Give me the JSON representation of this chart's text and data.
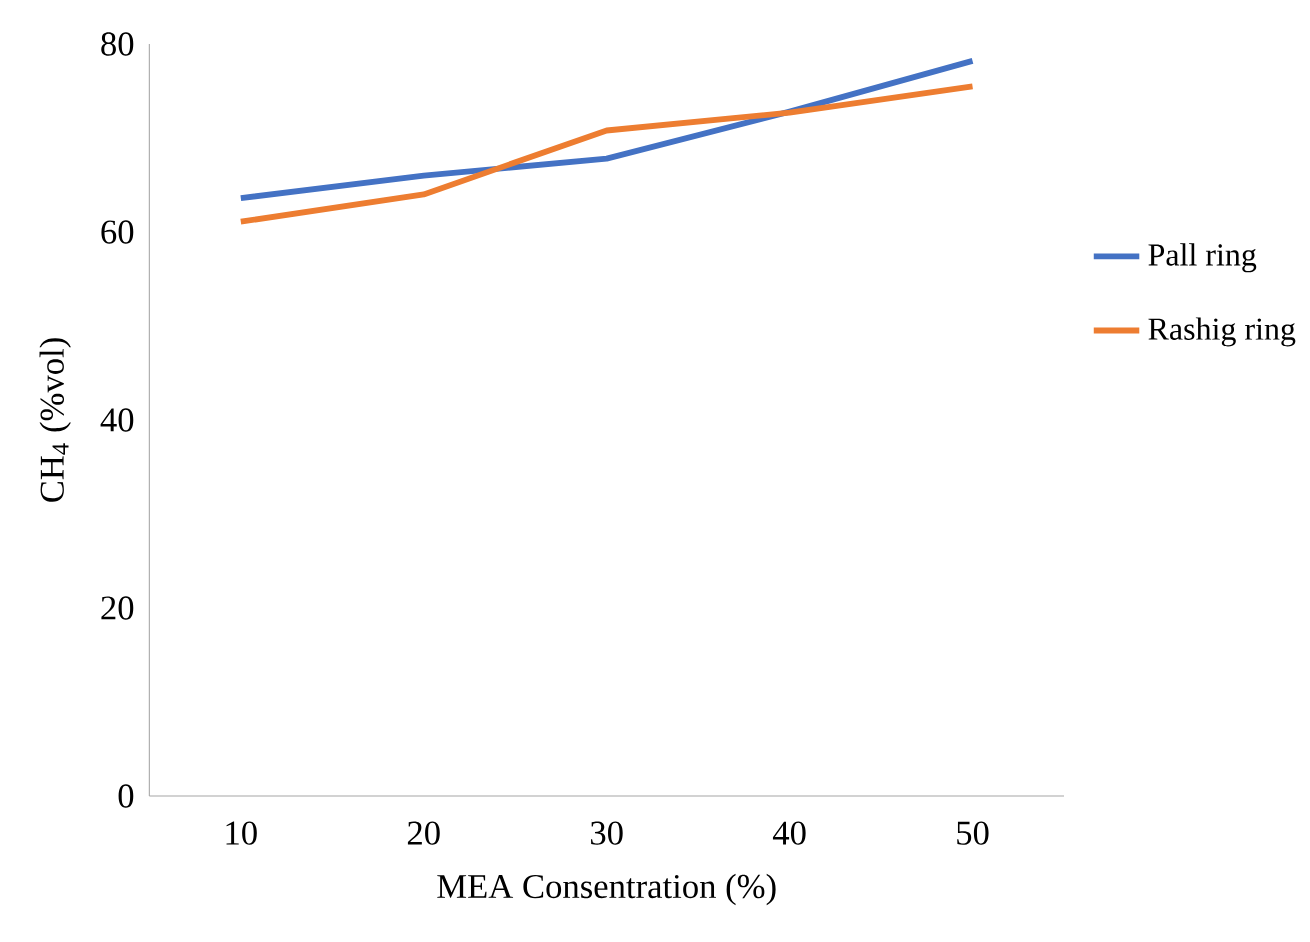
{
  "chart_data": {
    "type": "line",
    "xlabel": "MEA Consentration (%)",
    "ylabel": "CH$_{4}$ (%vol)",
    "categories": [
      "10",
      "20",
      "30",
      "40",
      "50"
    ],
    "series": [
      {
        "name": "Pall ring",
        "color": "#4472c4",
        "values": [
          63.6,
          66.0,
          67.8,
          72.8,
          78.2
        ]
      },
      {
        "name": "Rashig ring",
        "color": "#ed7d31",
        "values": [
          61.1,
          64.0,
          70.8,
          72.7,
          75.5
        ]
      }
    ],
    "ylim": [
      0,
      80
    ],
    "yticks": [
      0,
      20,
      40,
      60,
      80
    ],
    "grid": false,
    "legend": "right",
    "marker": "none",
    "line_style": "solid"
  }
}
